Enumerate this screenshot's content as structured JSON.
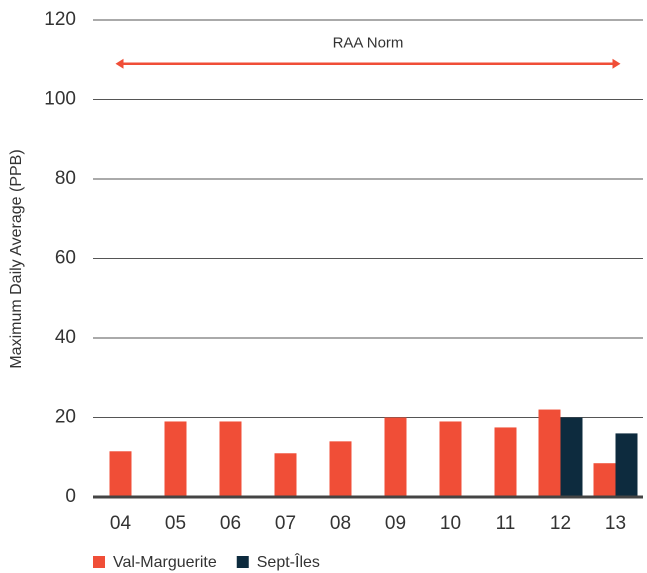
{
  "chart_data": {
    "type": "bar",
    "y_label": "Maximum Daily Average (PPB)",
    "categories": [
      "04",
      "05",
      "06",
      "07",
      "08",
      "09",
      "10",
      "11",
      "12",
      "13"
    ],
    "series": [
      {
        "name": "Val-Marguerite",
        "color": "#f04e37",
        "values": [
          11.5,
          19,
          19,
          11,
          14,
          20,
          19,
          17.5,
          22,
          8.5
        ]
      },
      {
        "name": "Sept-Îles",
        "color": "#0d2b3e",
        "values": [
          null,
          null,
          null,
          null,
          null,
          null,
          null,
          null,
          20,
          16
        ]
      }
    ],
    "reference": {
      "label": "RAA Norm",
      "value": 109,
      "color": "#f04e37"
    },
    "ylim": [
      0,
      120
    ],
    "yticks": [
      0,
      20,
      40,
      60,
      80,
      100,
      120
    ],
    "grid": true,
    "legend": "bottom"
  }
}
